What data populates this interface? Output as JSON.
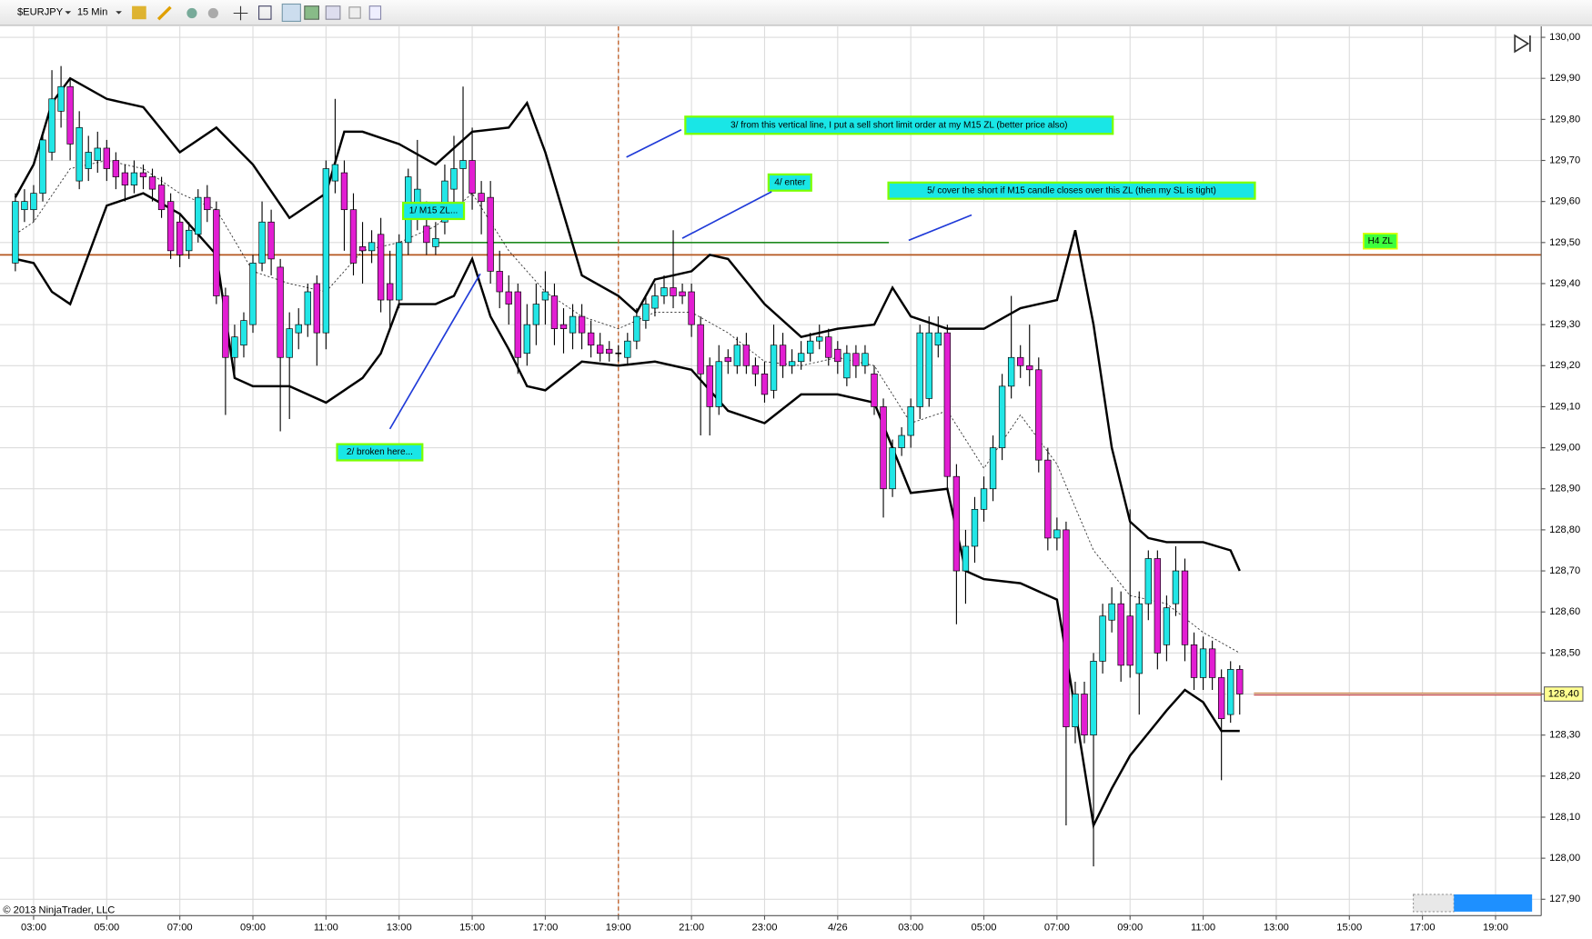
{
  "toolbar": {
    "symbol": "$EURJPY",
    "interval": "15 Min"
  },
  "chart_data": {
    "type": "candlestick",
    "copyright": "© 2013 NinjaTrader, LLC",
    "up_color": "#22e6e6",
    "down_color": "#e21ed2",
    "grid": true,
    "xlim": [
      2.08,
      44.25
    ],
    "ylim": [
      127.86,
      130.02
    ],
    "xticks": [
      {
        "value": 3,
        "label": "03:00"
      },
      {
        "value": 5,
        "label": "05:00"
      },
      {
        "value": 7,
        "label": "07:00"
      },
      {
        "value": 9,
        "label": "09:00"
      },
      {
        "value": 11,
        "label": "11:00"
      },
      {
        "value": 13,
        "label": "13:00"
      },
      {
        "value": 15,
        "label": "15:00"
      },
      {
        "value": 17,
        "label": "17:00"
      },
      {
        "value": 19,
        "label": "19:00"
      },
      {
        "value": 21,
        "label": "21:00"
      },
      {
        "value": 23,
        "label": "23:00"
      },
      {
        "value": 25,
        "label": "4/26"
      },
      {
        "value": 27,
        "label": "03:00"
      },
      {
        "value": 29,
        "label": "05:00"
      },
      {
        "value": 31,
        "label": "07:00"
      },
      {
        "value": 33,
        "label": "09:00"
      },
      {
        "value": 35,
        "label": "11:00"
      },
      {
        "value": 37,
        "label": "13:00"
      },
      {
        "value": 39,
        "label": "15:00"
      },
      {
        "value": 41,
        "label": "17:00"
      },
      {
        "value": 43,
        "label": "19:00"
      }
    ],
    "yticks": [
      {
        "value": 127.9,
        "label": "127,90"
      },
      {
        "value": 128.0,
        "label": "128,00"
      },
      {
        "value": 128.1,
        "label": "128,10"
      },
      {
        "value": 128.2,
        "label": "128,20"
      },
      {
        "value": 128.3,
        "label": "128,30"
      },
      {
        "value": 128.4,
        "label": "128,40"
      },
      {
        "value": 128.5,
        "label": "128,50"
      },
      {
        "value": 128.6,
        "label": "128,60"
      },
      {
        "value": 128.7,
        "label": "128,70"
      },
      {
        "value": 128.8,
        "label": "128,80"
      },
      {
        "value": 128.9,
        "label": "128,90"
      },
      {
        "value": 129.0,
        "label": "129,00"
      },
      {
        "value": 129.1,
        "label": "129,10"
      },
      {
        "value": 129.2,
        "label": "129,20"
      },
      {
        "value": 129.3,
        "label": "129,30"
      },
      {
        "value": 129.4,
        "label": "129,40"
      },
      {
        "value": 129.5,
        "label": "129,50"
      },
      {
        "value": 129.6,
        "label": "129,60"
      },
      {
        "value": 129.7,
        "label": "129,70"
      },
      {
        "value": 129.8,
        "label": "129,80"
      },
      {
        "value": 129.9,
        "label": "129,90"
      },
      {
        "value": 130.0,
        "label": "130,00"
      }
    ],
    "x": [
      2.5,
      2.75,
      3,
      3.25,
      3.5,
      3.75,
      4,
      4.25,
      4.5,
      4.75,
      5,
      5.25,
      5.5,
      5.75,
      6,
      6.25,
      6.5,
      6.75,
      7,
      7.25,
      7.5,
      7.75,
      8,
      8.25,
      8.5,
      8.75,
      9,
      9.25,
      9.5,
      9.75,
      10,
      10.25,
      10.5,
      10.75,
      11,
      11.25,
      11.5,
      11.75,
      12,
      12.25,
      12.5,
      12.75,
      13,
      13.25,
      13.5,
      13.75,
      14,
      14.25,
      14.5,
      14.75,
      15,
      15.25,
      15.5,
      15.75,
      16,
      16.25,
      16.5,
      16.75,
      17,
      17.25,
      17.5,
      17.75,
      18,
      18.25,
      18.5,
      18.75,
      19,
      19.25,
      19.5,
      19.75,
      20,
      20.25,
      20.5,
      20.75,
      21,
      21.25,
      21.5,
      21.75,
      22,
      22.25,
      22.5,
      22.75,
      23,
      23.25,
      23.5,
      23.75,
      24,
      24.25,
      24.5,
      24.75,
      25,
      25.25,
      25.5,
      25.75,
      26,
      26.25,
      26.5,
      26.75,
      27,
      27.25,
      27.5,
      27.75,
      28,
      28.25,
      28.5,
      28.75,
      29,
      29.25,
      29.5,
      29.75,
      30,
      30.25,
      30.5,
      30.75,
      31,
      31.25,
      31.5,
      31.75,
      32,
      32.25,
      32.5,
      32.75,
      33,
      33.25,
      33.5,
      33.75,
      34,
      34.25,
      34.5,
      34.75,
      35,
      35.25,
      35.5,
      35.75,
      36
    ],
    "open": [
      129.45,
      129.58,
      129.58,
      129.62,
      129.72,
      129.82,
      129.88,
      129.65,
      129.68,
      129.7,
      129.73,
      129.7,
      129.67,
      129.64,
      129.67,
      129.66,
      129.64,
      129.6,
      129.55,
      129.48,
      129.52,
      129.61,
      129.58,
      129.37,
      129.22,
      129.25,
      129.3,
      129.45,
      129.55,
      129.44,
      129.22,
      129.28,
      129.3,
      129.4,
      129.28,
      129.65,
      129.67,
      129.58,
      129.49,
      129.48,
      129.52,
      129.4,
      129.36,
      129.5,
      129.57,
      129.54,
      129.49,
      129.55,
      129.63,
      129.68,
      129.7,
      129.62,
      129.61,
      129.43,
      129.38,
      129.38,
      129.23,
      129.3,
      129.36,
      129.37,
      129.3,
      129.28,
      129.32,
      129.28,
      129.25,
      129.24,
      129.23,
      129.22,
      129.26,
      129.31,
      129.34,
      129.37,
      129.39,
      129.38,
      129.38,
      129.3,
      129.2,
      129.1,
      129.22,
      129.2,
      129.25,
      129.2,
      129.18,
      129.14,
      129.25,
      129.2,
      129.21,
      129.23,
      129.26,
      129.27,
      129.24,
      129.17,
      129.23,
      129.2,
      129.18,
      129.1,
      128.9,
      129.0,
      129.03,
      129.1,
      129.12,
      129.25,
      129.28,
      128.93,
      128.7,
      128.76,
      128.85,
      128.9,
      129.0,
      129.15,
      129.22,
      129.2,
      129.19,
      128.97,
      128.78,
      128.8,
      128.32,
      128.4,
      128.3,
      128.48,
      128.58,
      128.62,
      128.59,
      128.45,
      128.62,
      128.73,
      128.52,
      128.62,
      128.7,
      128.52,
      128.44,
      128.51,
      128.44,
      128.35,
      128.46
    ],
    "high": [
      129.62,
      129.63,
      129.64,
      129.77,
      129.92,
      129.93,
      129.9,
      129.82,
      129.76,
      129.77,
      129.75,
      129.72,
      129.69,
      129.7,
      129.69,
      129.68,
      129.66,
      129.62,
      129.57,
      129.55,
      129.63,
      129.64,
      129.6,
      129.39,
      129.3,
      129.33,
      129.47,
      129.6,
      129.58,
      129.46,
      129.33,
      129.34,
      129.4,
      129.42,
      129.7,
      129.85,
      129.7,
      129.62,
      129.55,
      129.53,
      129.56,
      129.48,
      129.52,
      129.68,
      129.75,
      129.6,
      129.55,
      129.69,
      129.76,
      129.88,
      129.78,
      129.65,
      129.65,
      129.48,
      129.42,
      129.4,
      129.35,
      129.4,
      129.43,
      129.4,
      129.34,
      129.35,
      129.35,
      129.31,
      129.28,
      129.26,
      129.25,
      129.28,
      129.34,
      129.37,
      129.4,
      129.42,
      129.53,
      129.4,
      129.4,
      129.32,
      129.22,
      129.25,
      129.24,
      129.27,
      129.28,
      129.22,
      129.21,
      129.3,
      129.28,
      129.24,
      129.26,
      129.28,
      129.3,
      129.29,
      129.26,
      129.25,
      129.25,
      129.25,
      129.2,
      129.12,
      129.02,
      129.05,
      129.12,
      129.3,
      129.32,
      129.32,
      129.3,
      128.96,
      128.8,
      128.88,
      128.93,
      129.03,
      129.18,
      129.37,
      129.25,
      129.3,
      129.22,
      129.0,
      128.83,
      128.82,
      128.43,
      128.43,
      128.5,
      128.62,
      128.66,
      128.65,
      128.85,
      128.65,
      128.75,
      128.75,
      128.64,
      128.76,
      128.73,
      128.55,
      128.54,
      128.53,
      128.46,
      128.48,
      128.47
    ],
    "low": [
      129.43,
      129.55,
      129.55,
      129.6,
      129.7,
      129.78,
      129.7,
      129.63,
      129.65,
      129.67,
      129.65,
      129.63,
      129.6,
      129.62,
      129.63,
      129.6,
      129.56,
      129.46,
      129.44,
      129.46,
      129.5,
      129.55,
      129.35,
      129.08,
      129.18,
      129.22,
      129.28,
      129.43,
      129.42,
      129.04,
      129.07,
      129.24,
      129.27,
      129.2,
      129.24,
      129.62,
      129.48,
      129.42,
      129.4,
      129.45,
      129.33,
      129.29,
      129.34,
      129.47,
      129.53,
      129.47,
      129.47,
      129.52,
      129.58,
      129.6,
      129.58,
      129.52,
      129.4,
      129.34,
      129.3,
      129.18,
      129.2,
      129.25,
      129.3,
      129.25,
      129.23,
      129.24,
      129.24,
      129.22,
      129.21,
      129.21,
      129.21,
      129.2,
      129.24,
      129.29,
      129.32,
      129.35,
      129.34,
      129.35,
      129.27,
      129.03,
      129.03,
      129.08,
      129.18,
      129.18,
      129.18,
      129.15,
      129.11,
      129.12,
      129.17,
      129.18,
      129.19,
      129.21,
      129.24,
      129.2,
      129.18,
      129.15,
      129.17,
      129.18,
      129.08,
      128.83,
      128.88,
      128.98,
      129.0,
      129.07,
      129.1,
      129.22,
      128.9,
      128.57,
      128.62,
      128.72,
      128.82,
      128.87,
      128.97,
      129.12,
      129.17,
      129.15,
      128.94,
      128.75,
      128.75,
      128.08,
      128.28,
      128.28,
      127.98,
      128.45,
      128.55,
      128.43,
      128.44,
      128.35,
      128.58,
      128.46,
      128.48,
      128.59,
      128.48,
      128.41,
      128.41,
      128.41,
      128.19,
      128.33,
      128.35
    ],
    "close": [
      129.6,
      129.6,
      129.62,
      129.75,
      129.85,
      129.88,
      129.74,
      129.78,
      129.72,
      129.73,
      129.68,
      129.66,
      129.64,
      129.67,
      129.66,
      129.63,
      129.58,
      129.48,
      129.47,
      129.53,
      129.61,
      129.58,
      129.37,
      129.22,
      129.27,
      129.31,
      129.45,
      129.55,
      129.46,
      129.22,
      129.29,
      129.3,
      129.38,
      129.28,
      129.68,
      129.69,
      129.58,
      129.45,
      129.48,
      129.5,
      129.36,
      129.36,
      129.5,
      129.66,
      129.63,
      129.5,
      129.51,
      129.65,
      129.68,
      129.7,
      129.62,
      129.6,
      129.43,
      129.38,
      129.35,
      129.22,
      129.3,
      129.35,
      129.38,
      129.29,
      129.29,
      129.32,
      129.28,
      129.25,
      129.23,
      129.23,
      129.23,
      129.26,
      129.32,
      129.35,
      129.37,
      129.39,
      129.37,
      129.37,
      129.3,
      129.18,
      129.1,
      129.21,
      129.21,
      129.25,
      129.2,
      129.18,
      129.13,
      129.25,
      129.2,
      129.21,
      129.23,
      129.26,
      129.27,
      129.22,
      129.21,
      129.23,
      129.2,
      129.23,
      129.1,
      128.9,
      129.0,
      129.03,
      129.1,
      129.28,
      129.28,
      129.28,
      128.93,
      128.7,
      128.76,
      128.85,
      128.9,
      129.0,
      129.15,
      129.22,
      129.2,
      129.19,
      128.97,
      128.78,
      128.8,
      128.32,
      128.4,
      128.3,
      128.48,
      128.59,
      128.62,
      128.47,
      128.47,
      128.62,
      128.73,
      128.5,
      128.61,
      128.7,
      128.52,
      128.44,
      128.51,
      128.44,
      128.34,
      128.46,
      128.4
    ],
    "lines": [
      {
        "style": "solid",
        "color": "#000000",
        "x": [
          2.5,
          3,
          3.5,
          4,
          5,
          6,
          7,
          8,
          9,
          10,
          11,
          11.5,
          12,
          13,
          14,
          15,
          16,
          16.5,
          17,
          18,
          19,
          19.5,
          20,
          21,
          21.5,
          22,
          23,
          24,
          25,
          26,
          26.5,
          27,
          28,
          29,
          30,
          31,
          31.5,
          32,
          32.5,
          33,
          33.5,
          34,
          35,
          35.75,
          36
        ],
        "values": [
          129.61,
          129.69,
          129.84,
          129.9,
          129.85,
          129.83,
          129.72,
          129.78,
          129.69,
          129.56,
          129.62,
          129.77,
          129.77,
          129.74,
          129.69,
          129.77,
          129.78,
          129.84,
          129.72,
          129.42,
          129.37,
          129.33,
          129.41,
          129.43,
          129.47,
          129.46,
          129.35,
          129.27,
          129.29,
          129.3,
          129.39,
          129.32,
          129.29,
          129.29,
          129.34,
          129.36,
          129.53,
          129.3,
          129.0,
          128.82,
          128.78,
          128.77,
          128.77,
          128.75,
          128.7
        ]
      },
      {
        "style": "solid",
        "color": "#000000",
        "x": [
          2.5,
          3,
          3.5,
          4,
          5,
          6,
          7,
          8,
          8.5,
          9,
          10,
          10.5,
          11,
          12,
          12.5,
          13,
          14,
          14.5,
          15,
          15.5,
          16,
          16.5,
          17,
          18,
          19,
          20,
          21,
          22,
          23,
          24,
          25,
          26,
          27,
          28,
          28.5,
          29,
          30,
          31,
          31.5,
          32,
          32.5,
          33,
          34,
          34.5,
          35,
          35.5,
          36
        ],
        "values": [
          129.46,
          129.45,
          129.38,
          129.35,
          129.59,
          129.62,
          129.57,
          129.47,
          129.17,
          129.15,
          129.15,
          129.13,
          129.11,
          129.17,
          129.23,
          129.35,
          129.35,
          129.37,
          129.46,
          129.32,
          129.24,
          129.15,
          129.14,
          129.21,
          129.2,
          129.21,
          129.19,
          129.09,
          129.06,
          129.13,
          129.13,
          129.11,
          128.89,
          128.9,
          128.7,
          128.68,
          128.67,
          128.63,
          128.36,
          128.08,
          128.17,
          128.25,
          128.36,
          128.41,
          128.38,
          128.31,
          128.31
        ]
      },
      {
        "style": "dotted",
        "color": "#333333",
        "x": [
          2.5,
          3,
          4,
          5,
          6,
          7,
          8,
          9,
          10,
          11,
          12,
          13,
          14,
          15,
          16,
          17,
          18,
          19,
          20,
          21,
          22,
          23,
          24,
          25,
          26,
          27,
          28,
          29,
          30,
          31,
          32,
          33,
          34,
          35,
          36
        ],
        "values": [
          129.52,
          129.55,
          129.68,
          129.7,
          129.68,
          129.62,
          129.58,
          129.43,
          129.4,
          129.38,
          129.48,
          129.5,
          129.54,
          129.62,
          129.48,
          129.38,
          129.32,
          129.29,
          129.33,
          129.33,
          129.28,
          129.21,
          129.2,
          129.22,
          129.2,
          129.06,
          129.09,
          128.95,
          129.08,
          128.96,
          128.75,
          128.64,
          128.62,
          128.55,
          128.5
        ]
      }
    ],
    "hlines": [
      {
        "value": 129.47,
        "label": "H4 ZL",
        "color": "#b5561e"
      },
      {
        "value": 129.5,
        "xrange": [
          14,
          26.4
        ],
        "color": "#1f8a1f"
      }
    ],
    "vline": {
      "value": 19,
      "color": "#c0602a"
    },
    "last_price": {
      "value": 128.4,
      "label": "128,40"
    },
    "annotations": [
      {
        "text": "1/ M15 ZL..."
      },
      {
        "text": "2/ broken here..."
      },
      {
        "text": "3/ from this vertical line, I put a sell short limit order at my M15 ZL (better price also)"
      },
      {
        "text": "4/ enter"
      },
      {
        "text": "5/ cover the short if M15 candle closes over this ZL (then my SL is tight)"
      }
    ]
  }
}
